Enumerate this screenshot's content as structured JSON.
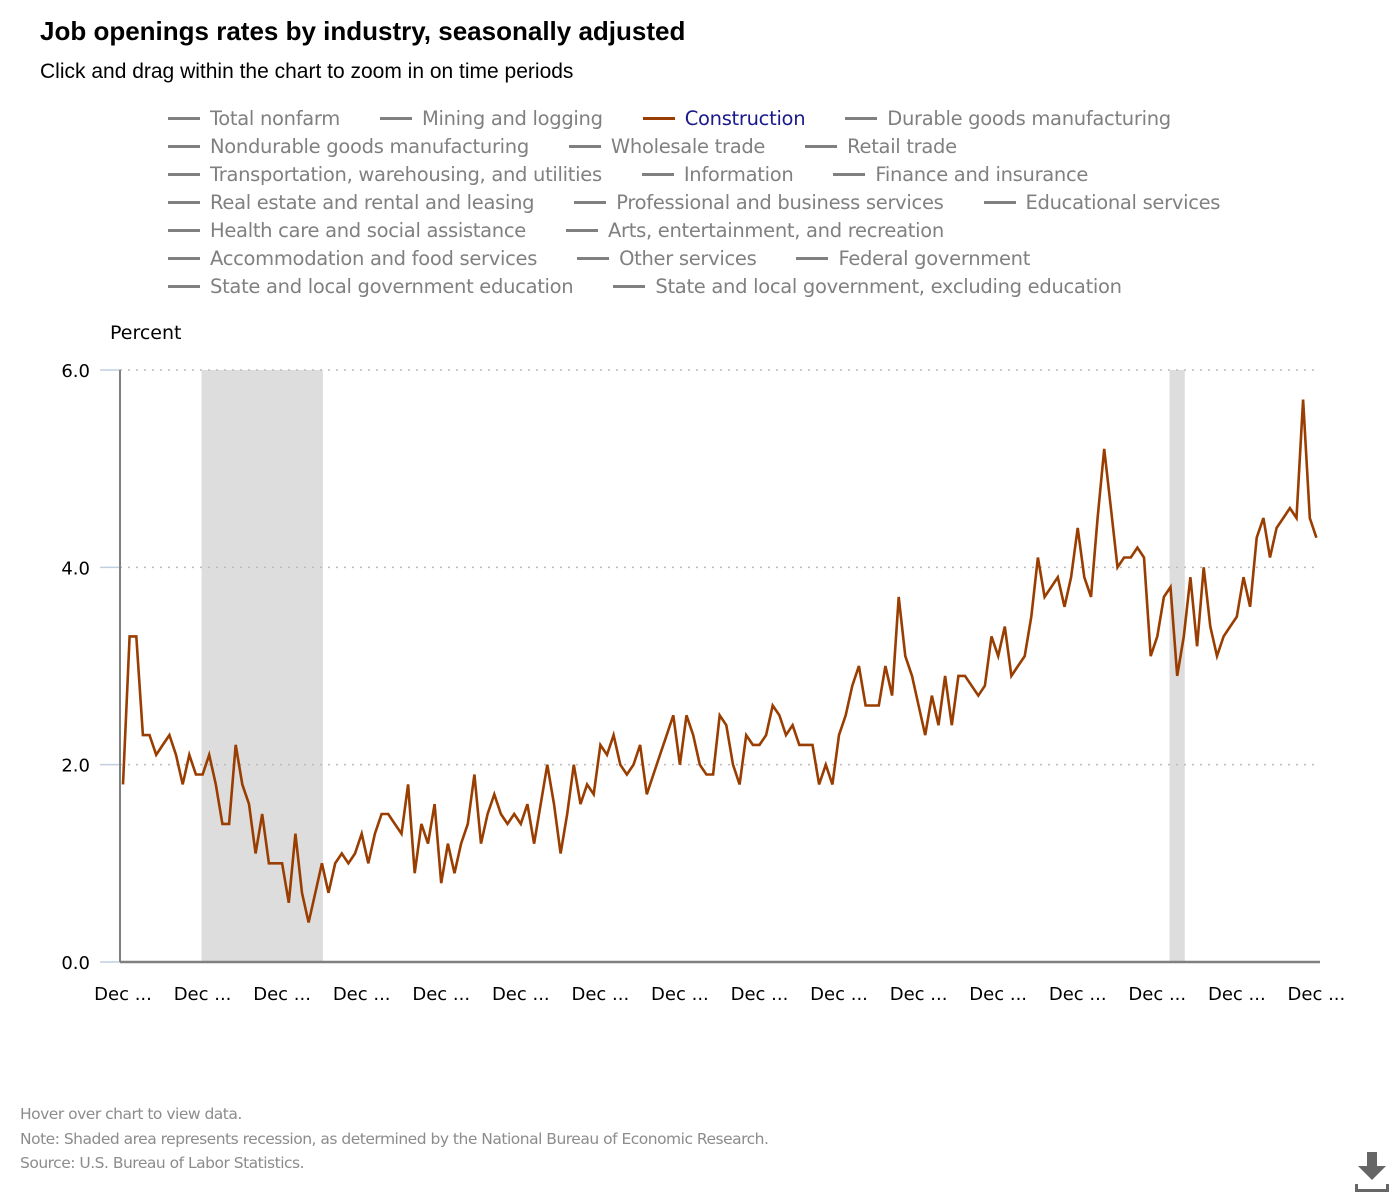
{
  "header": {
    "title": "Job openings rates by industry, seasonally adjusted",
    "subtitle": "Click and drag within the chart to zoom in on time periods"
  },
  "legend": {
    "rows": [
      [
        {
          "label": "Total nonfarm",
          "active": false
        },
        {
          "label": "Mining and logging",
          "active": false
        },
        {
          "label": "Construction",
          "active": true
        },
        {
          "label": "Durable goods manufacturing",
          "active": false
        }
      ],
      [
        {
          "label": "Nondurable goods manufacturing",
          "active": false
        },
        {
          "label": "Wholesale trade",
          "active": false
        },
        {
          "label": "Retail trade",
          "active": false
        }
      ],
      [
        {
          "label": "Transportation, warehousing, and utilities",
          "active": false
        },
        {
          "label": "Information",
          "active": false
        },
        {
          "label": "Finance and insurance",
          "active": false
        }
      ],
      [
        {
          "label": "Real estate and rental and leasing",
          "active": false
        },
        {
          "label": "Professional and business services",
          "active": false
        },
        {
          "label": "Educational services",
          "active": false
        }
      ],
      [
        {
          "label": "Health care and social assistance",
          "active": false
        },
        {
          "label": "Arts, entertainment, and recreation",
          "active": false
        }
      ],
      [
        {
          "label": "Accommodation and food services",
          "active": false
        },
        {
          "label": "Other services",
          "active": false
        },
        {
          "label": "Federal government",
          "active": false
        }
      ],
      [
        {
          "label": "State and local government education",
          "active": false
        },
        {
          "label": "State and local government, excluding education",
          "active": false
        }
      ]
    ]
  },
  "colors": {
    "series": "#993d00",
    "inactive_legend": "#808080",
    "active_legend_text": "#1a1a8c",
    "recession": "#dddddd",
    "grid": "#bbbbbb",
    "axis": "#808080",
    "footer": "#8c8c8c",
    "download_icon": "#666666"
  },
  "chart_data": {
    "type": "line",
    "title": "Job openings rates by industry, seasonally adjusted",
    "ylabel": "Percent",
    "xlabel": "",
    "ylim": [
      0,
      6
    ],
    "y_ticks": [
      "0.0",
      "2.0",
      "4.0",
      "6.0"
    ],
    "y_tick_values": [
      0,
      2,
      4,
      6
    ],
    "grid": "horizontal dotted",
    "x_tick_labels": [
      "Dec ...",
      "Dec ...",
      "Dec ...",
      "Dec ...",
      "Dec ...",
      "Dec ...",
      "Dec ...",
      "Dec ...",
      "Dec ...",
      "Dec ...",
      "Dec ...",
      "Dec ...",
      "Dec ...",
      "Dec ...",
      "Dec ...",
      "Dec ..."
    ],
    "x_tick_every_n_points": 12,
    "recessions": [
      {
        "start_index": 12,
        "end_index": 30
      },
      {
        "start_index": 158,
        "end_index": 160
      }
    ],
    "series": [
      {
        "name": "Construction",
        "values": [
          1.8,
          3.3,
          3.3,
          2.3,
          2.3,
          2.1,
          2.2,
          2.3,
          2.1,
          1.8,
          2.1,
          1.9,
          1.9,
          2.1,
          1.8,
          1.4,
          1.4,
          2.2,
          1.8,
          1.6,
          1.1,
          1.5,
          1.0,
          1.0,
          1.0,
          0.6,
          1.3,
          0.7,
          0.4,
          0.7,
          1.0,
          0.7,
          1.0,
          1.1,
          1.0,
          1.1,
          1.3,
          1.0,
          1.3,
          1.5,
          1.5,
          1.4,
          1.3,
          1.8,
          0.9,
          1.4,
          1.2,
          1.6,
          0.8,
          1.2,
          0.9,
          1.2,
          1.4,
          1.9,
          1.2,
          1.5,
          1.7,
          1.5,
          1.4,
          1.5,
          1.4,
          1.6,
          1.2,
          1.6,
          2.0,
          1.6,
          1.1,
          1.5,
          2.0,
          1.6,
          1.8,
          1.7,
          2.2,
          2.1,
          2.3,
          2.0,
          1.9,
          2.0,
          2.2,
          1.7,
          1.9,
          2.1,
          2.3,
          2.5,
          2.0,
          2.5,
          2.3,
          2.0,
          1.9,
          1.9,
          2.5,
          2.4,
          2.0,
          1.8,
          2.3,
          2.2,
          2.2,
          2.3,
          2.6,
          2.5,
          2.3,
          2.4,
          2.2,
          2.2,
          2.2,
          1.8,
          2.0,
          1.8,
          2.3,
          2.5,
          2.8,
          3.0,
          2.6,
          2.6,
          2.6,
          3.0,
          2.7,
          3.7,
          3.1,
          2.9,
          2.6,
          2.3,
          2.7,
          2.4,
          2.9,
          2.4,
          2.9,
          2.9,
          2.8,
          2.7,
          2.8,
          3.3,
          3.1,
          3.4,
          2.9,
          3.0,
          3.1,
          3.5,
          4.1,
          3.7,
          3.8,
          3.9,
          3.6,
          3.9,
          4.4,
          3.9,
          3.7,
          4.5,
          5.2,
          4.6,
          4.0,
          4.1,
          4.1,
          4.2,
          4.1,
          3.1,
          3.3,
          3.7,
          3.8,
          2.9,
          3.3,
          3.9,
          3.2,
          4.0,
          3.4,
          3.1,
          3.3,
          3.4,
          3.5,
          3.9,
          3.6,
          4.3,
          4.5,
          4.1,
          4.4,
          4.5,
          4.6,
          4.5,
          5.7,
          4.5,
          4.3
        ]
      }
    ],
    "legend_placement": "top"
  },
  "footer": {
    "hover_hint": "Hover over chart to view data.",
    "note": "Note: Shaded area represents recession, as determined by the National Bureau of Economic Research.",
    "source": "Source: U.S. Bureau of Labor Statistics."
  },
  "icons": {
    "download": "download-icon"
  }
}
